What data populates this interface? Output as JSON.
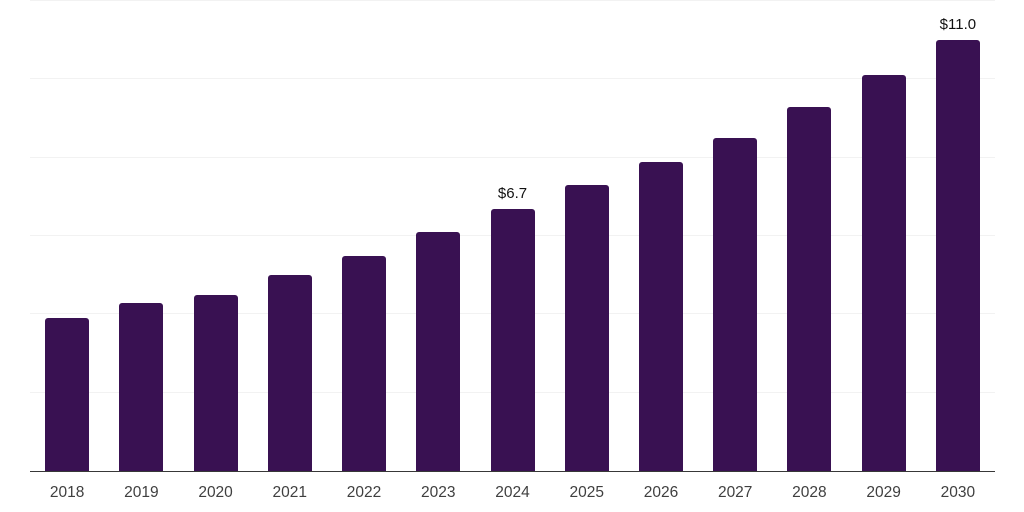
{
  "chart_data": {
    "type": "bar",
    "title": "",
    "xlabel": "",
    "ylabel": "",
    "categories": [
      "2018",
      "2019",
      "2020",
      "2021",
      "2022",
      "2023",
      "2024",
      "2025",
      "2026",
      "2027",
      "2028",
      "2029",
      "2030"
    ],
    "values": [
      3.9,
      4.3,
      4.5,
      5.0,
      5.5,
      6.1,
      6.7,
      7.3,
      7.9,
      8.5,
      9.3,
      10.1,
      11.0
    ],
    "bar_labels": [
      "",
      "",
      "",
      "",
      "",
      "",
      "$6.7",
      "",
      "",
      "",
      "",
      "",
      "$11.0"
    ],
    "ylim": [
      0,
      12
    ],
    "gridline_step": 2,
    "grid": "horizontal",
    "legend_position": "none",
    "colors": {
      "bar": "#391152",
      "gridline": "#f2f2f2",
      "axis_line": "#383838",
      "tick_label": "#3f3f3f",
      "value_label": "#111111",
      "background": "#ffffff"
    }
  }
}
